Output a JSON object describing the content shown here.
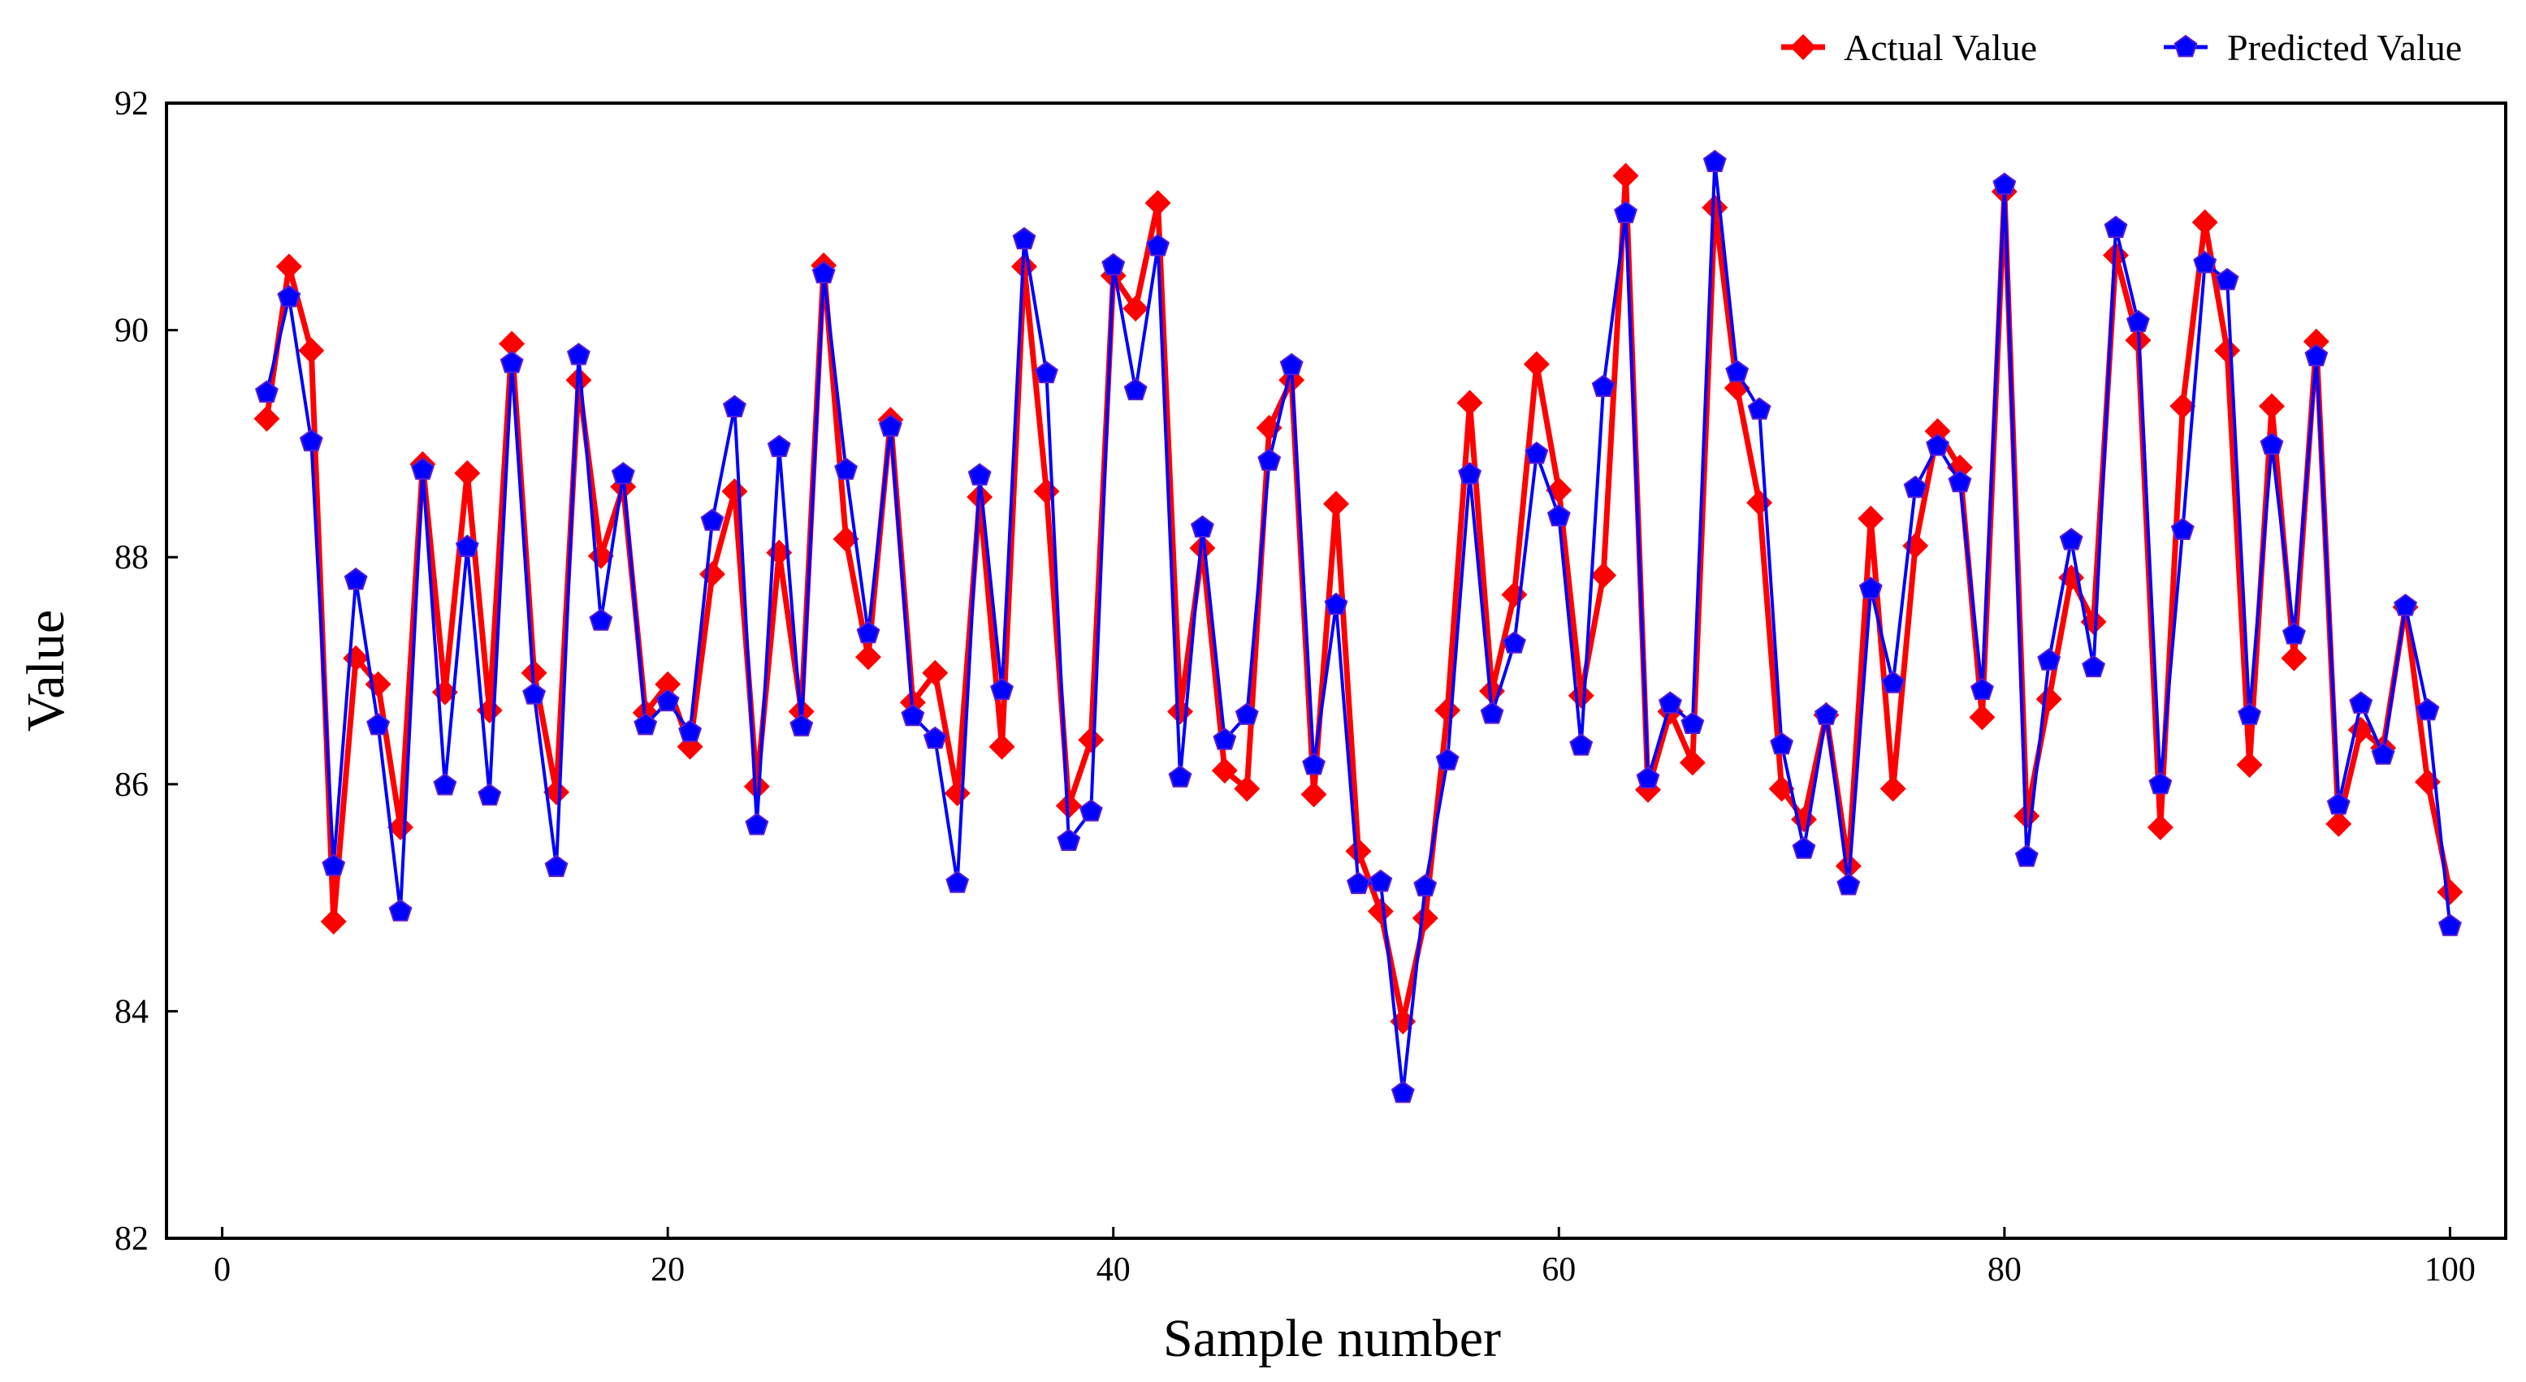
{
  "chart_data": {
    "type": "line",
    "title": "",
    "xlabel": "Sample number",
    "ylabel": "Value",
    "xlim": [
      -2.5,
      102.5
    ],
    "ylim": [
      82,
      92
    ],
    "xticks": [
      0,
      20,
      40,
      60,
      80,
      100
    ],
    "yticks": [
      82,
      84,
      86,
      88,
      90,
      92
    ],
    "grid": false,
    "legend_position": "top-right",
    "x": [
      2,
      3,
      4,
      5,
      6,
      7,
      8,
      9,
      10,
      11,
      12,
      13,
      14,
      15,
      16,
      17,
      18,
      19,
      20,
      21,
      22,
      23,
      24,
      25,
      26,
      27,
      28,
      29,
      30,
      31,
      32,
      33,
      34,
      35,
      36,
      37,
      38,
      39,
      40,
      41,
      42,
      43,
      44,
      45,
      46,
      47,
      48,
      49,
      50,
      51,
      52,
      53,
      54,
      55,
      56,
      57,
      58,
      59,
      60,
      61,
      62,
      63,
      64,
      65,
      66,
      67,
      68,
      69,
      70,
      71,
      72,
      73,
      74,
      75,
      76,
      77,
      78,
      79,
      80,
      81,
      82,
      83,
      84,
      85,
      86,
      87,
      88,
      89,
      90,
      91,
      92,
      93,
      94,
      95,
      96,
      97,
      98,
      99,
      100
    ],
    "series": [
      {
        "name": "Actual Value",
        "color": "#ff0000",
        "marker": "diamond",
        "values": [
          89.22,
          90.56,
          89.82,
          84.79,
          87.11,
          86.88,
          85.62,
          88.82,
          86.81,
          88.74,
          86.65,
          89.88,
          86.98,
          85.93,
          89.56,
          88.01,
          88.62,
          86.63,
          86.88,
          86.33,
          87.85,
          88.58,
          85.98,
          88.04,
          86.64,
          90.57,
          88.16,
          87.12,
          89.21,
          86.72,
          86.98,
          85.92,
          88.53,
          86.33,
          90.56,
          88.58,
          85.81,
          86.39,
          90.48,
          90.19,
          91.12,
          86.64,
          88.08,
          86.12,
          85.96,
          89.14,
          89.56,
          85.91,
          88.47,
          85.41,
          84.88,
          83.91,
          84.82,
          86.65,
          89.36,
          86.82,
          87.67,
          89.7,
          88.59,
          86.78,
          87.84,
          91.36,
          85.95,
          86.64,
          86.19,
          91.08,
          89.49,
          88.48,
          85.96,
          85.69,
          86.61,
          85.28,
          88.34,
          85.96,
          88.1,
          89.11,
          88.79,
          86.59,
          91.22,
          85.72,
          86.75,
          87.82,
          87.43,
          90.66,
          89.91,
          85.62,
          89.33,
          90.95,
          89.82,
          86.17,
          89.33,
          87.11,
          89.9,
          85.65,
          86.48,
          86.32,
          87.56,
          86.02,
          85.05
        ]
      },
      {
        "name": "Predicted Value",
        "color": "#0000ff",
        "marker": "pentagon",
        "values": [
          89.45,
          90.29,
          89.02,
          85.28,
          87.8,
          86.52,
          84.88,
          88.77,
          85.99,
          88.09,
          85.9,
          89.71,
          86.79,
          85.27,
          89.78,
          87.44,
          88.73,
          86.52,
          86.73,
          86.46,
          88.32,
          89.32,
          85.64,
          88.97,
          86.51,
          90.5,
          88.77,
          87.33,
          89.15,
          86.6,
          86.4,
          85.13,
          88.72,
          86.83,
          90.8,
          89.62,
          85.5,
          85.76,
          90.57,
          89.47,
          90.74,
          86.06,
          88.26,
          86.39,
          86.61,
          88.85,
          89.69,
          86.17,
          87.58,
          85.12,
          85.14,
          83.28,
          85.1,
          86.21,
          88.73,
          86.62,
          87.24,
          88.91,
          88.36,
          86.34,
          89.5,
          91.03,
          86.05,
          86.71,
          86.53,
          91.48,
          89.63,
          89.3,
          86.35,
          85.43,
          86.61,
          85.11,
          87.72,
          86.89,
          88.61,
          88.98,
          88.66,
          86.83,
          91.28,
          85.36,
          87.09,
          88.15,
          87.03,
          90.9,
          90.07,
          86.0,
          88.24,
          90.59,
          90.44,
          86.61,
          88.99,
          87.32,
          89.77,
          85.82,
          86.71,
          86.26,
          87.57,
          86.65,
          84.75
        ]
      }
    ]
  }
}
